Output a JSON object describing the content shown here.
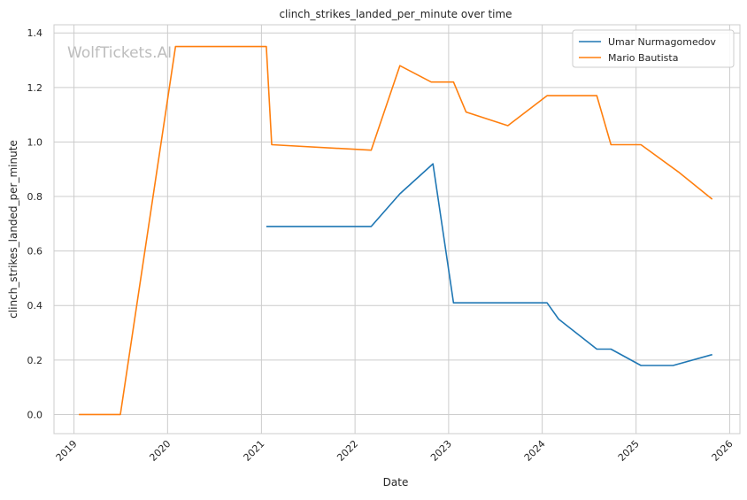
{
  "watermark": "WolfTickets.AI",
  "colors": {
    "series_0": "#1f77b4",
    "series_1": "#ff7f0e",
    "grid": "#cccccc",
    "frame": "#cccccc",
    "background": "#ffffff"
  },
  "chart_data": {
    "type": "line",
    "title": "clinch_strikes_landed_per_minute over time",
    "xlabel": "Date",
    "ylabel": "clinch_strikes_landed_per_minute",
    "x_ticks": [
      "2019",
      "2020",
      "2021",
      "2022",
      "2023",
      "2024",
      "2025",
      "2026"
    ],
    "y_ticks": [
      "0.0",
      "0.2",
      "0.4",
      "0.6",
      "0.8",
      "1.0",
      "1.2",
      "1.4"
    ],
    "xlim": [
      "2018-10-15",
      "2026-02-10"
    ],
    "ylim": [
      -0.07,
      1.43
    ],
    "grid": true,
    "legend_position": "upper right",
    "series": [
      {
        "name": "Umar Nurmagomedov",
        "color": "#1f77b4",
        "points": [
          [
            "2021-01-20",
            0.69
          ],
          [
            "2022-03-05",
            0.69
          ],
          [
            "2022-06-25",
            0.81
          ],
          [
            "2022-11-01",
            0.92
          ],
          [
            "2023-01-20",
            0.41
          ],
          [
            "2024-01-20",
            0.41
          ],
          [
            "2024-03-05",
            0.35
          ],
          [
            "2024-08-01",
            0.24
          ],
          [
            "2024-09-25",
            0.24
          ],
          [
            "2025-01-20",
            0.18
          ],
          [
            "2025-05-25",
            0.18
          ],
          [
            "2025-10-25",
            0.22
          ]
        ]
      },
      {
        "name": "Mario Bautista",
        "color": "#ff7f0e",
        "points": [
          [
            "2019-01-20",
            0.0
          ],
          [
            "2019-07-01",
            0.0
          ],
          [
            "2020-02-01",
            1.35
          ],
          [
            "2021-01-20",
            1.35
          ],
          [
            "2021-02-10",
            0.99
          ],
          [
            "2022-03-05",
            0.97
          ],
          [
            "2022-06-25",
            1.28
          ],
          [
            "2022-10-25",
            1.22
          ],
          [
            "2023-01-20",
            1.22
          ],
          [
            "2023-03-10",
            1.11
          ],
          [
            "2023-08-20",
            1.06
          ],
          [
            "2024-01-20",
            1.17
          ],
          [
            "2024-08-01",
            1.17
          ],
          [
            "2024-09-25",
            0.99
          ],
          [
            "2025-01-20",
            0.99
          ],
          [
            "2025-06-15",
            0.89
          ],
          [
            "2025-10-25",
            0.79
          ]
        ]
      }
    ]
  }
}
